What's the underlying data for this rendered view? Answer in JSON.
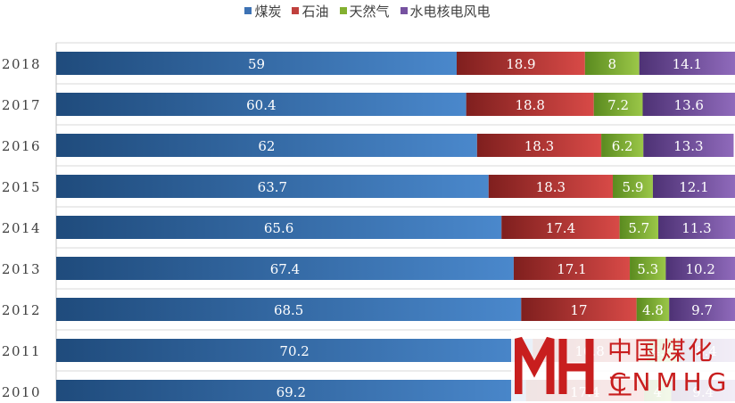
{
  "chart_data": {
    "type": "bar",
    "orientation": "horizontal",
    "stacked": true,
    "categories": [
      "2018",
      "2017",
      "2016",
      "2015",
      "2014",
      "2013",
      "2012",
      "2011",
      "2010"
    ],
    "series": [
      {
        "name": "煤炭",
        "color": "#3d72b4",
        "values": [
          59,
          60.4,
          62,
          63.7,
          65.6,
          67.4,
          68.5,
          70.2,
          69.2
        ]
      },
      {
        "name": "石油",
        "color": "#c0403d",
        "values": [
          18.9,
          18.8,
          18.3,
          18.3,
          17.4,
          17.1,
          17,
          16.8,
          17.4
        ]
      },
      {
        "name": "天然气",
        "color": "#83b030",
        "values": [
          8,
          7.2,
          6.2,
          5.9,
          5.7,
          5.3,
          4.8,
          4.6,
          4
        ]
      },
      {
        "name": "水电核电风电",
        "color": "#7652a0",
        "values": [
          14.1,
          13.6,
          13.3,
          12.1,
          11.3,
          10.2,
          9.7,
          8.4,
          9.4
        ]
      }
    ],
    "xlim": [
      0,
      100
    ],
    "legend_position": "top-center",
    "grid": true
  },
  "watermark": {
    "cn": "中国煤化工",
    "en": "CNMHG"
  }
}
